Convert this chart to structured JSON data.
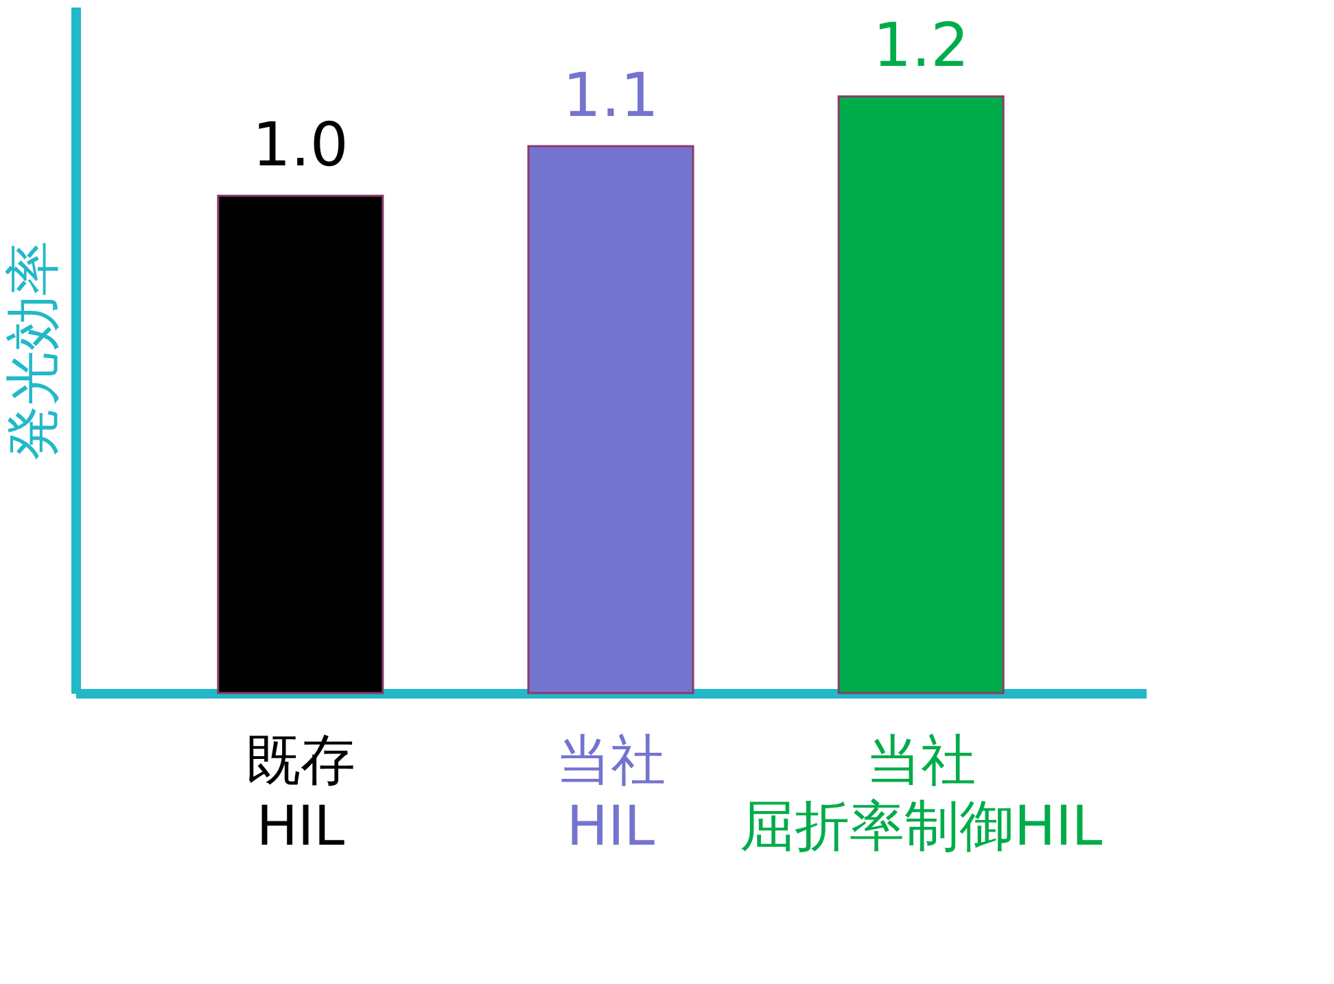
{
  "chart_data": {
    "type": "bar",
    "ylabel": "発光効率",
    "categories": [
      "既存HIL",
      "当社HIL",
      "当社屈折率制御HIL"
    ],
    "values": [
      1.0,
      1.1,
      1.2
    ],
    "value_labels": [
      "1.0",
      "1.1",
      "1.2"
    ],
    "colors": [
      "#000000",
      "#7474cf",
      "#00ac4a"
    ],
    "grid": false
  }
}
